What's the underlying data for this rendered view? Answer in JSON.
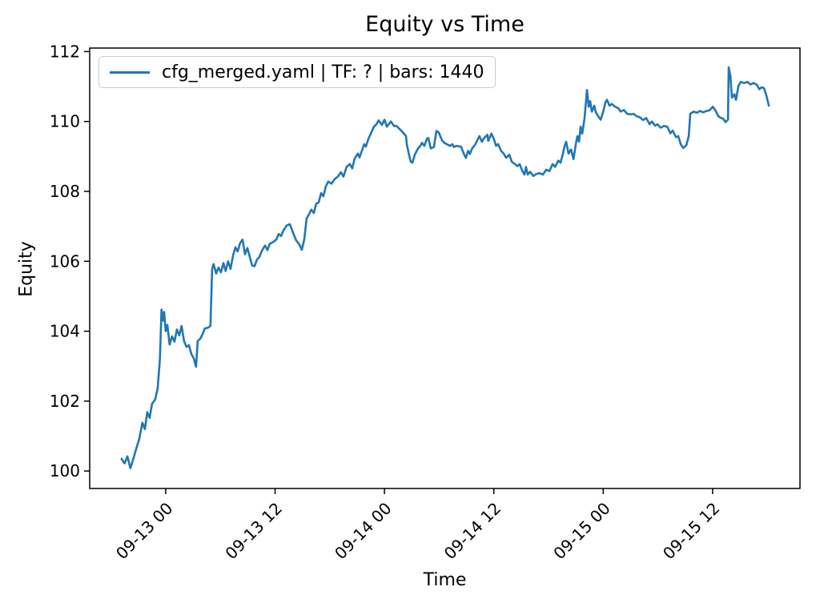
{
  "chart_data": {
    "type": "line",
    "title": "Equity vs Time",
    "xlabel": "Time",
    "ylabel": "Equity",
    "legend": {
      "label": "cfg_merged.yaml | TF: ? | bars: 1440",
      "position": "upper left"
    },
    "line_color": "#1f77b4",
    "grid": false,
    "ylim": [
      99.5,
      112.1
    ],
    "yticks": [
      100,
      102,
      104,
      106,
      108,
      110,
      112
    ],
    "xlim": [
      "09-12 15:40",
      "09-15 21:35"
    ],
    "xticks": [
      "09-13 00",
      "09-13 12",
      "09-14 00",
      "09-14 12",
      "09-15 00",
      "09-15 12"
    ],
    "points": [
      [
        "09-12 19:10",
        100.35
      ],
      [
        "09-12 19:30",
        100.22
      ],
      [
        "09-12 19:48",
        100.42
      ],
      [
        "09-12 20:08",
        100.08
      ],
      [
        "09-12 20:24",
        100.3
      ],
      [
        "09-12 20:45",
        100.62
      ],
      [
        "09-12 21:06",
        100.92
      ],
      [
        "09-12 21:27",
        101.38
      ],
      [
        "09-12 21:43",
        101.2
      ],
      [
        "09-12 21:59",
        101.68
      ],
      [
        "09-12 22:15",
        101.52
      ],
      [
        "09-12 22:30",
        101.92
      ],
      [
        "09-12 22:51",
        102.05
      ],
      [
        "09-12 23:07",
        102.35
      ],
      [
        "09-12 23:22",
        103.2
      ],
      [
        "09-12 23:33",
        104.62
      ],
      [
        "09-12 23:44",
        104.3
      ],
      [
        "09-12 23:50",
        104.55
      ],
      [
        "09-13 00:00",
        104.0
      ],
      [
        "09-13 00:11",
        104.18
      ],
      [
        "09-13 00:26",
        103.62
      ],
      [
        "09-13 00:42",
        103.85
      ],
      [
        "09-13 00:58",
        103.7
      ],
      [
        "09-13 01:14",
        104.05
      ],
      [
        "09-13 01:30",
        103.88
      ],
      [
        "09-13 01:45",
        104.15
      ],
      [
        "09-13 02:01",
        103.72
      ],
      [
        "09-13 02:17",
        103.55
      ],
      [
        "09-13 02:33",
        103.6
      ],
      [
        "09-13 02:49",
        103.35
      ],
      [
        "09-13 03:05",
        103.22
      ],
      [
        "09-13 03:20",
        102.98
      ],
      [
        "09-13 03:31",
        103.72
      ],
      [
        "09-13 03:47",
        103.78
      ],
      [
        "09-13 04:02",
        103.9
      ],
      [
        "09-13 04:18",
        104.08
      ],
      [
        "09-13 04:39",
        104.1
      ],
      [
        "09-13 04:55",
        104.15
      ],
      [
        "09-13 05:06",
        105.78
      ],
      [
        "09-13 05:16",
        105.92
      ],
      [
        "09-13 05:32",
        105.65
      ],
      [
        "09-13 05:48",
        105.82
      ],
      [
        "09-13 06:04",
        105.68
      ],
      [
        "09-13 06:20",
        105.95
      ],
      [
        "09-13 06:35",
        105.72
      ],
      [
        "09-13 06:51",
        106.0
      ],
      [
        "09-13 07:07",
        105.78
      ],
      [
        "09-13 07:23",
        106.15
      ],
      [
        "09-13 07:39",
        106.4
      ],
      [
        "09-13 07:54",
        106.28
      ],
      [
        "09-13 08:10",
        106.52
      ],
      [
        "09-13 08:26",
        106.62
      ],
      [
        "09-13 08:42",
        106.2
      ],
      [
        "09-13 08:58",
        106.38
      ],
      [
        "09-13 09:14",
        106.12
      ],
      [
        "09-13 09:29",
        105.88
      ],
      [
        "09-13 09:45",
        105.86
      ],
      [
        "09-13 10:01",
        106.05
      ],
      [
        "09-13 10:17",
        106.12
      ],
      [
        "09-13 10:33",
        106.3
      ],
      [
        "09-13 10:54",
        106.45
      ],
      [
        "09-13 11:10",
        106.32
      ],
      [
        "09-13 11:25",
        106.5
      ],
      [
        "09-13 11:47",
        106.55
      ],
      [
        "09-13 12:08",
        106.62
      ],
      [
        "09-13 12:24",
        106.78
      ],
      [
        "09-13 12:39",
        106.72
      ],
      [
        "09-13 12:55",
        106.88
      ],
      [
        "09-13 13:16",
        107.02
      ],
      [
        "09-13 13:37",
        107.06
      ],
      [
        "09-13 13:58",
        106.82
      ],
      [
        "09-13 14:19",
        106.6
      ],
      [
        "09-13 14:40",
        106.48
      ],
      [
        "09-13 14:56",
        106.33
      ],
      [
        "09-13 15:12",
        106.62
      ],
      [
        "09-13 15:28",
        107.22
      ],
      [
        "09-13 15:44",
        107.35
      ],
      [
        "09-13 15:59",
        107.48
      ],
      [
        "09-13 16:15",
        107.38
      ],
      [
        "09-13 16:31",
        107.65
      ],
      [
        "09-13 16:47",
        107.68
      ],
      [
        "09-13 17:03",
        107.95
      ],
      [
        "09-13 17:18",
        107.86
      ],
      [
        "09-13 17:34",
        108.14
      ],
      [
        "09-13 17:50",
        108.28
      ],
      [
        "09-13 18:11",
        108.22
      ],
      [
        "09-13 18:32",
        108.35
      ],
      [
        "09-13 18:53",
        108.42
      ],
      [
        "09-13 19:14",
        108.55
      ],
      [
        "09-13 19:30",
        108.42
      ],
      [
        "09-13 19:51",
        108.7
      ],
      [
        "09-13 20:12",
        108.78
      ],
      [
        "09-13 20:28",
        108.66
      ],
      [
        "09-13 20:44",
        108.94
      ],
      [
        "09-13 21:05",
        109.08
      ],
      [
        "09-13 21:16",
        108.97
      ],
      [
        "09-13 21:32",
        109.17
      ],
      [
        "09-13 21:47",
        109.35
      ],
      [
        "09-13 21:58",
        109.28
      ],
      [
        "09-13 22:14",
        109.5
      ],
      [
        "09-13 22:30",
        109.65
      ],
      [
        "09-13 22:51",
        109.85
      ],
      [
        "09-13 23:07",
        109.92
      ],
      [
        "09-13 23:22",
        110.03
      ],
      [
        "09-13 23:43",
        109.9
      ],
      [
        "09-14 00:00",
        110.05
      ],
      [
        "09-14 00:16",
        109.85
      ],
      [
        "09-14 00:42",
        110.0
      ],
      [
        "09-14 01:03",
        109.87
      ],
      [
        "09-14 01:19",
        109.87
      ],
      [
        "09-14 01:45",
        109.76
      ],
      [
        "09-14 02:01",
        109.69
      ],
      [
        "09-14 02:22",
        109.58
      ],
      [
        "09-14 02:27",
        109.35
      ],
      [
        "09-14 02:38",
        109.12
      ],
      [
        "09-14 02:53",
        108.85
      ],
      [
        "09-14 03:04",
        108.82
      ],
      [
        "09-14 03:20",
        109.05
      ],
      [
        "09-14 03:41",
        109.23
      ],
      [
        "09-14 03:57",
        109.3
      ],
      [
        "09-14 04:07",
        109.39
      ],
      [
        "09-14 04:23",
        109.3
      ],
      [
        "09-14 04:39",
        109.5
      ],
      [
        "09-14 04:49",
        109.53
      ],
      [
        "09-14 05:05",
        109.23
      ],
      [
        "09-14 05:26",
        109.27
      ],
      [
        "09-14 05:42",
        109.73
      ],
      [
        "09-14 05:57",
        109.69
      ],
      [
        "09-14 06:19",
        109.46
      ],
      [
        "09-14 06:34",
        109.39
      ],
      [
        "09-14 06:50",
        109.35
      ],
      [
        "09-14 07:11",
        109.3
      ],
      [
        "09-14 07:27",
        109.35
      ],
      [
        "09-14 07:37",
        109.27
      ],
      [
        "09-14 07:53",
        109.3
      ],
      [
        "09-14 08:24",
        109.28
      ],
      [
        "09-14 08:45",
        109.05
      ],
      [
        "09-14 08:56",
        108.96
      ],
      [
        "09-14 09:11",
        109.16
      ],
      [
        "09-14 09:22",
        109.07
      ],
      [
        "09-14 09:38",
        109.23
      ],
      [
        "09-14 09:59",
        109.35
      ],
      [
        "09-14 10:15",
        109.5
      ],
      [
        "09-14 10:25",
        109.58
      ],
      [
        "09-14 10:41",
        109.42
      ],
      [
        "09-14 10:57",
        109.53
      ],
      [
        "09-14 11:18",
        109.62
      ],
      [
        "09-14 11:23",
        109.44
      ],
      [
        "09-14 11:44",
        109.65
      ],
      [
        "09-14 12:00",
        109.5
      ],
      [
        "09-14 12:15",
        109.3
      ],
      [
        "09-14 12:28",
        109.35
      ],
      [
        "09-14 12:49",
        109.15
      ],
      [
        "09-14 13:05",
        109.08
      ],
      [
        "09-14 13:21",
        108.96
      ],
      [
        "09-14 13:42",
        109.05
      ],
      [
        "09-14 13:58",
        108.85
      ],
      [
        "09-14 14:19",
        108.78
      ],
      [
        "09-14 14:35",
        108.72
      ],
      [
        "09-14 14:50",
        108.78
      ],
      [
        "09-14 15:06",
        108.6
      ],
      [
        "09-14 15:22",
        108.48
      ],
      [
        "09-14 15:32",
        108.7
      ],
      [
        "09-14 15:43",
        108.48
      ],
      [
        "09-14 15:59",
        108.56
      ],
      [
        "09-14 16:20",
        108.44
      ],
      [
        "09-14 16:41",
        108.5
      ],
      [
        "09-14 17:02",
        108.52
      ],
      [
        "09-14 17:23",
        108.48
      ],
      [
        "09-14 17:45",
        108.62
      ],
      [
        "09-14 18:06",
        108.58
      ],
      [
        "09-14 18:27",
        108.78
      ],
      [
        "09-14 18:43",
        108.7
      ],
      [
        "09-14 19:04",
        108.88
      ],
      [
        "09-14 19:19",
        108.82
      ],
      [
        "09-14 19:35",
        109.08
      ],
      [
        "09-14 19:46",
        109.3
      ],
      [
        "09-14 19:56",
        109.42
      ],
      [
        "09-14 20:12",
        109.08
      ],
      [
        "09-14 20:28",
        109.2
      ],
      [
        "09-14 20:44",
        108.92
      ],
      [
        "09-14 21:00",
        109.35
      ],
      [
        "09-14 21:10",
        109.58
      ],
      [
        "09-14 21:21",
        109.42
      ],
      [
        "09-14 21:31",
        109.85
      ],
      [
        "09-14 21:42",
        109.65
      ],
      [
        "09-14 21:57",
        110.1
      ],
      [
        "09-14 22:13",
        110.9
      ],
      [
        "09-14 22:24",
        110.42
      ],
      [
        "09-14 22:34",
        110.58
      ],
      [
        "09-14 22:45",
        110.28
      ],
      [
        "09-14 23:01",
        110.45
      ],
      [
        "09-14 23:11",
        110.26
      ],
      [
        "09-14 23:27",
        110.15
      ],
      [
        "09-14 23:43",
        110.05
      ],
      [
        "09-15 00:00",
        110.28
      ],
      [
        "09-15 00:15",
        110.55
      ],
      [
        "09-15 00:25",
        110.62
      ],
      [
        "09-15 00:41",
        110.45
      ],
      [
        "09-15 00:57",
        110.5
      ],
      [
        "09-15 01:18",
        110.42
      ],
      [
        "09-15 01:39",
        110.38
      ],
      [
        "09-15 01:55",
        110.28
      ],
      [
        "09-15 02:16",
        110.33
      ],
      [
        "09-15 02:37",
        110.22
      ],
      [
        "09-15 02:58",
        110.2
      ],
      [
        "09-15 03:19",
        110.22
      ],
      [
        "09-15 03:40",
        110.15
      ],
      [
        "09-15 04:01",
        110.12
      ],
      [
        "09-15 04:22",
        110.04
      ],
      [
        "09-15 04:43",
        110.1
      ],
      [
        "09-15 05:05",
        109.92
      ],
      [
        "09-15 05:20",
        110.0
      ],
      [
        "09-15 05:41",
        109.88
      ],
      [
        "09-15 05:57",
        109.92
      ],
      [
        "09-15 06:18",
        109.82
      ],
      [
        "09-15 06:40",
        109.87
      ],
      [
        "09-15 07:01",
        109.85
      ],
      [
        "09-15 07:22",
        109.66
      ],
      [
        "09-15 07:37",
        109.74
      ],
      [
        "09-15 07:59",
        109.55
      ],
      [
        "09-15 08:14",
        109.58
      ],
      [
        "09-15 08:30",
        109.35
      ],
      [
        "09-15 08:46",
        109.24
      ],
      [
        "09-15 09:07",
        109.32
      ],
      [
        "09-15 09:23",
        109.58
      ],
      [
        "09-15 09:33",
        110.22
      ],
      [
        "09-15 09:55",
        110.28
      ],
      [
        "09-15 10:16",
        110.25
      ],
      [
        "09-15 10:37",
        110.3
      ],
      [
        "09-15 10:58",
        110.26
      ],
      [
        "09-15 11:19",
        110.3
      ],
      [
        "09-15 11:40",
        110.32
      ],
      [
        "09-15 12:01",
        110.42
      ],
      [
        "09-15 12:17",
        110.33
      ],
      [
        "09-15 12:38",
        110.15
      ],
      [
        "09-15 12:54",
        110.1
      ],
      [
        "09-15 13:10",
        110.08
      ],
      [
        "09-15 13:25",
        109.98
      ],
      [
        "09-15 13:41",
        110.05
      ],
      [
        "09-15 13:46",
        111.55
      ],
      [
        "09-15 13:57",
        111.3
      ],
      [
        "09-15 14:07",
        110.68
      ],
      [
        "09-15 14:23",
        110.78
      ],
      [
        "09-15 14:34",
        110.62
      ],
      [
        "09-15 14:50",
        111.02
      ],
      [
        "09-15 15:05",
        111.13
      ],
      [
        "09-15 15:27",
        111.1
      ],
      [
        "09-15 15:48",
        111.13
      ],
      [
        "09-15 16:09",
        111.06
      ],
      [
        "09-15 16:30",
        111.1
      ],
      [
        "09-15 16:51",
        111.05
      ],
      [
        "09-15 17:07",
        110.92
      ],
      [
        "09-15 17:23",
        110.98
      ],
      [
        "09-15 17:39",
        110.95
      ],
      [
        "09-15 17:55",
        110.72
      ],
      [
        "09-15 18:10",
        110.45
      ]
    ]
  }
}
